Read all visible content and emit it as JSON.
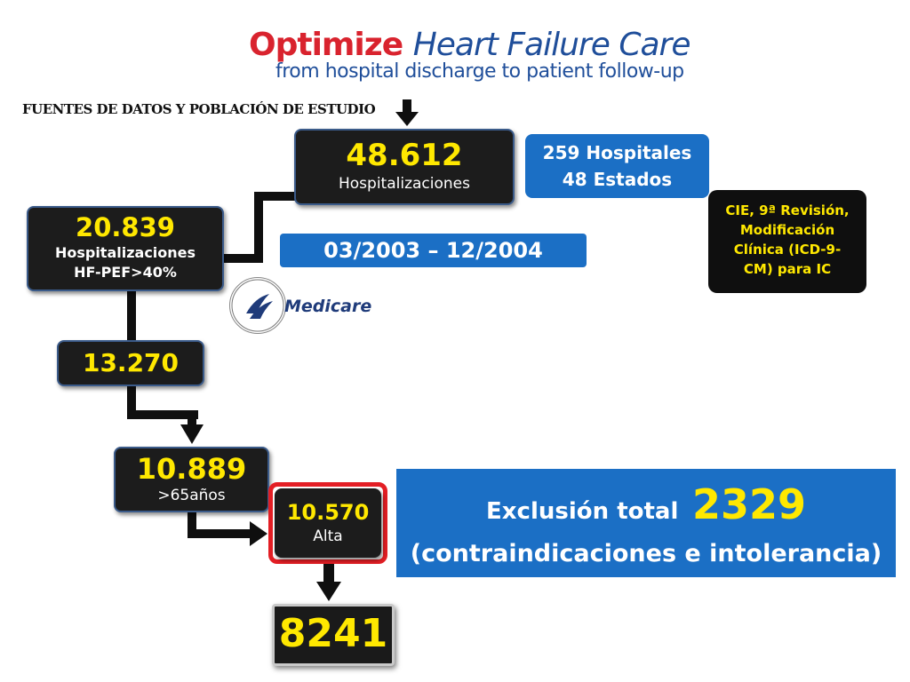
{
  "logo": {
    "word1": "Optimize",
    "word2": "Heart Failure Care",
    "tagline": "from hospital discharge to patient follow-up"
  },
  "section_title": "FUENTES DE DATOS Y POBLACIÓN DE ESTUDIO",
  "boxes": {
    "hospitalizaciones_total": {
      "value": "48.612",
      "label": "Hospitalizaciones"
    },
    "hospitales": {
      "line1": "259 Hospitales",
      "line2": "48 Estados"
    },
    "cie": {
      "line1": "CIE, 9ª Revisión,",
      "line2": "Modificación",
      "line3": "Clínica (ICD-9-",
      "line4": "CM) para IC"
    },
    "hfpef": {
      "value": "20.839",
      "line1": "Hospitalizaciones",
      "line2": "HF-PEF>40%"
    },
    "period": {
      "label": "03/2003 – 12/2004"
    },
    "n13270": {
      "value": "13.270"
    },
    "age65": {
      "value": "10.889",
      "label": ">65años"
    },
    "alta": {
      "value": "10.570",
      "label": "Alta"
    },
    "final": {
      "value": "8241"
    }
  },
  "exclusion": {
    "prefix": "Exclusión total",
    "number": "2329",
    "detail": "(contraindicaciones e intolerancia)"
  },
  "medicare": {
    "text": "Medicare"
  },
  "colors": {
    "yellow": "#ffe800",
    "blue": "#1b6fc5",
    "red": "#e31e24",
    "dark": "#1c1c1c"
  }
}
